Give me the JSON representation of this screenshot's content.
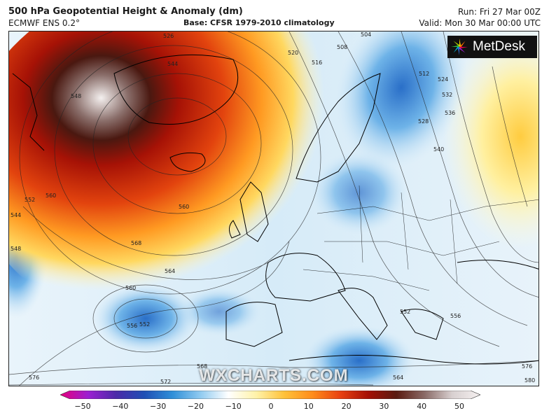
{
  "header": {
    "title": "500 hPa Geopotential Height & Anomaly (dm)",
    "model": "ECMWF ENS 0.2°",
    "base": "Base: CFSR 1979-2010 climatology",
    "run": "Run: Fri 27 Mar 00Z",
    "valid": "Valid: Mon 30 Mar 00:00 UTC"
  },
  "logo": {
    "text": "MetDesk",
    "icon": "metdesk-star-icon"
  },
  "watermark": "WXCHARTS.COM",
  "contour_labels": [
    "526",
    "544",
    "520",
    "516",
    "508",
    "504",
    "512",
    "524",
    "532",
    "536",
    "528",
    "540",
    "548",
    "560",
    "552",
    "544",
    "548",
    "560",
    "568",
    "564",
    "560",
    "556",
    "552",
    "552",
    "556",
    "568",
    "564",
    "576",
    "572",
    "576",
    "580"
  ],
  "colorbar": {
    "ticks": [
      "−50",
      "−40",
      "−30",
      "−20",
      "−10",
      "0",
      "10",
      "20",
      "30",
      "40",
      "50"
    ],
    "stops": [
      "#e6007e",
      "#9b1fd1",
      "#4b2aa8",
      "#1f4fb5",
      "#2f8fd8",
      "#8fcaf0",
      "#ffffff",
      "#fff2a8",
      "#ffc23a",
      "#ff8c1a",
      "#e84010",
      "#a51005",
      "#5a1a10",
      "#8a6a66",
      "#d8d0d0",
      "#f5f0f0"
    ]
  },
  "colors": {
    "warm_core": "#c62a0a",
    "cold_core": "#1f6fc5",
    "frame": "#222222"
  }
}
